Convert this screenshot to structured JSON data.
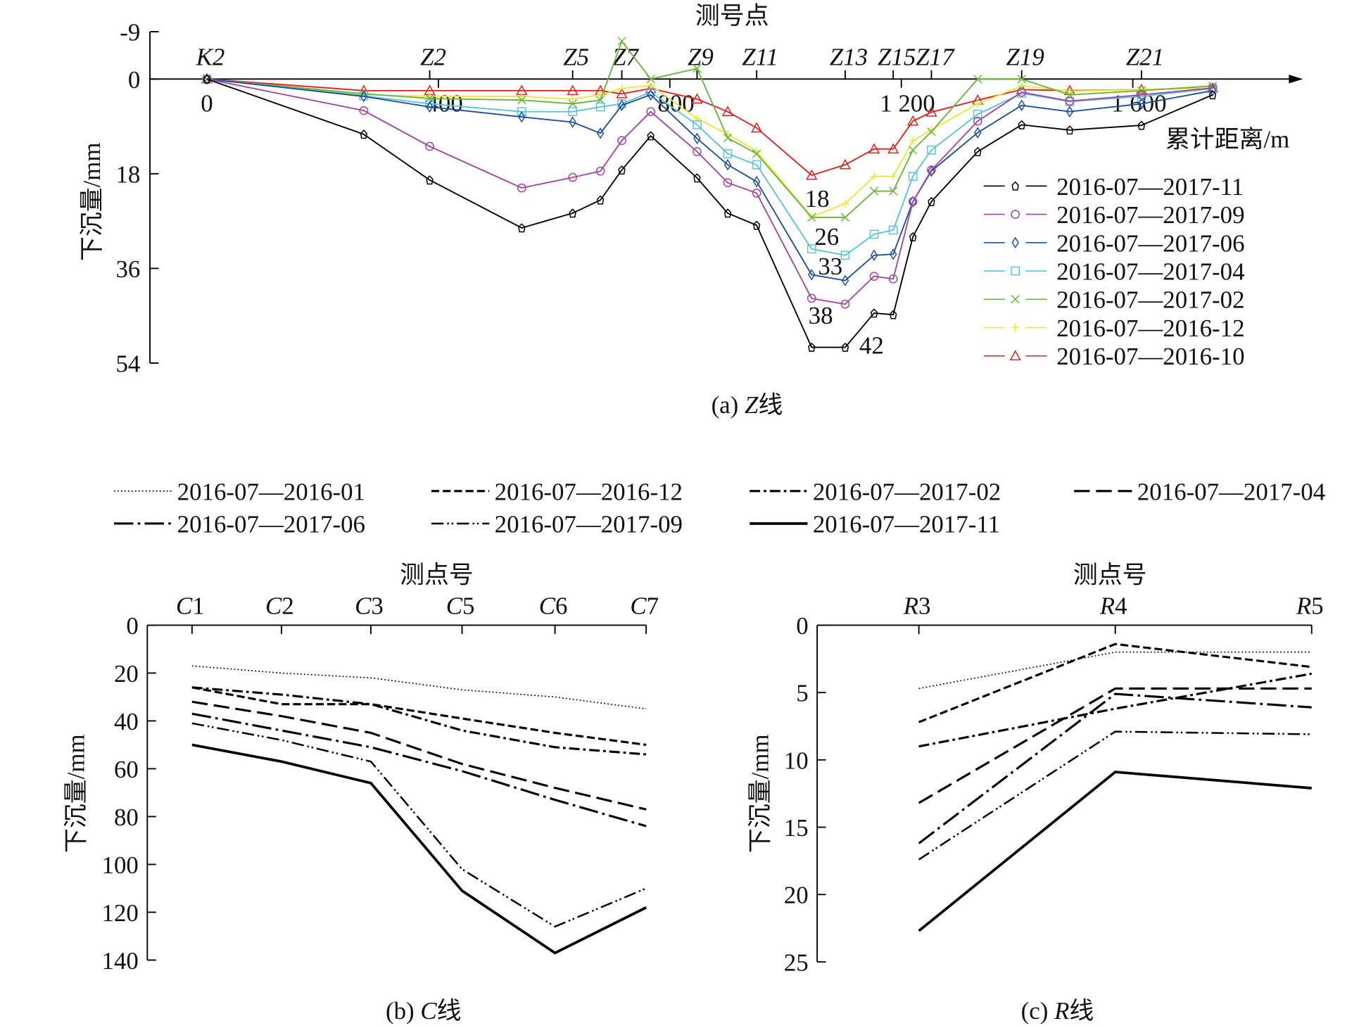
{
  "chart_data": [
    {
      "type": "line",
      "panel": "a",
      "title": "测号点",
      "caption": {
        "prefix": "(a) ",
        "letter": "Z",
        "suffix": "线"
      },
      "xlabel": "累计距离/m",
      "ylabel": "下沉量/mm",
      "xlim": [
        0,
        1850
      ],
      "ylim": [
        -9,
        54
      ],
      "y_inverted": true,
      "yticks": [
        -9,
        0,
        18,
        36,
        54
      ],
      "xticks": [
        {
          "v": 0,
          "label": "0"
        },
        {
          "v": 400,
          "label": "400"
        },
        {
          "v": 800,
          "label": "800"
        },
        {
          "v": 1200,
          "label": "1 200"
        },
        {
          "v": 1600,
          "label": "1 600"
        }
      ],
      "point_labels": [
        {
          "name": "K2",
          "x": 0
        },
        {
          "name": "Z2",
          "x": 385
        },
        {
          "name": "Z5",
          "x": 632
        },
        {
          "name": "Z7",
          "x": 717
        },
        {
          "name": "Z9",
          "x": 847
        },
        {
          "name": "Z11",
          "x": 950
        },
        {
          "name": "Z13",
          "x": 1103
        },
        {
          "name": "Z15",
          "x": 1186
        },
        {
          "name": "Z17",
          "x": 1252
        },
        {
          "name": "Z19",
          "x": 1408
        },
        {
          "name": "Z21",
          "x": 1615
        }
      ],
      "x": [
        0,
        271,
        385,
        544,
        632,
        680,
        717,
        767,
        847,
        900,
        950,
        1045,
        1103,
        1153,
        1186,
        1220,
        1252,
        1332,
        1408,
        1491,
        1615,
        1738
      ],
      "legend_placement": "right",
      "series": [
        {
          "name": "2016-07—2017-11",
          "color": "#000000",
          "marker": "pentagon",
          "values": [
            0,
            10.5,
            19.2,
            28.3,
            25.5,
            23,
            17.3,
            10.8,
            18.8,
            25.5,
            27.8,
            51,
            51,
            44.5,
            44.8,
            30,
            23.3,
            13.8,
            8.7,
            9.7,
            8.8,
            3
          ]
        },
        {
          "name": "2016-07—2017-09",
          "color": "#a0479e",
          "marker": "circle",
          "values": [
            0,
            6,
            12.8,
            20.7,
            18.7,
            17.5,
            11.7,
            6.2,
            13.8,
            19.7,
            21.7,
            41.7,
            42.8,
            37.5,
            38,
            23.3,
            17.3,
            8,
            2.5,
            4.2,
            3,
            1.7
          ]
        },
        {
          "name": "2016-07—2017-06",
          "color": "#1f4f9c",
          "marker": "diamond",
          "values": [
            0,
            3.3,
            5.3,
            7.2,
            8.2,
            10.3,
            5,
            3,
            11.3,
            16.3,
            19.5,
            37.2,
            38.3,
            33.5,
            33.3,
            23.3,
            17.5,
            10.2,
            5,
            6.2,
            4.7,
            2.2
          ]
        },
        {
          "name": "2016-07—2017-04",
          "color": "#5bc4d6",
          "marker": "square",
          "values": [
            0,
            3.2,
            4.7,
            6.2,
            6.2,
            5.3,
            4.7,
            2.5,
            8.7,
            14.2,
            16.3,
            32.3,
            33.5,
            29.5,
            28.7,
            18.5,
            13.5,
            6.7,
            2.7,
            4.3,
            3.3,
            1.8
          ]
        },
        {
          "name": "2016-07—2017-02",
          "color": "#6db33f",
          "marker": "x",
          "values": [
            0,
            2.8,
            3.7,
            4,
            4.7,
            4,
            -7.2,
            0,
            -2,
            11.2,
            14.2,
            26.3,
            26.3,
            21.3,
            21.3,
            13.5,
            10,
            0,
            0,
            3,
            2.2,
            1.3
          ]
        },
        {
          "name": "2016-07—2016-12",
          "color": "#e8e83a",
          "marker": "plus",
          "values": [
            0,
            3,
            3.3,
            3.3,
            3.8,
            3,
            1.8,
            1.2,
            7.5,
            10.5,
            13.7,
            26.2,
            23.7,
            18.5,
            18.5,
            11.7,
            9.7,
            4.7,
            1.3,
            2.3,
            2,
            1.7
          ]
        },
        {
          "name": "2016-07—2016-10",
          "color": "#e02020",
          "marker": "triangle",
          "values": [
            0,
            2.2,
            2.2,
            2.2,
            2.2,
            2.2,
            2.8,
            1.8,
            3.8,
            6.2,
            9.3,
            18.3,
            16.3,
            13.3,
            13.3,
            8,
            6.3,
            4,
            2,
            2.2,
            2,
            1.7
          ]
        }
      ],
      "annotations": {
        "color": "#1f4f9c",
        "labels": [
          "18",
          "26",
          "33",
          "38",
          "42"
        ]
      }
    },
    {
      "type": "line",
      "panel": "b",
      "title": "测点号",
      "caption": {
        "prefix": "(b) ",
        "letter": "C",
        "suffix": "线"
      },
      "ylabel": "下沉量/mm",
      "ylim": [
        0,
        140
      ],
      "y_inverted": true,
      "yticks": [
        0,
        20,
        40,
        60,
        80,
        100,
        120,
        140
      ],
      "categories": [
        {
          "letter": "C",
          "num": "1"
        },
        {
          "letter": "C",
          "num": "2"
        },
        {
          "letter": "C",
          "num": "3"
        },
        {
          "letter": "C",
          "num": "5"
        },
        {
          "letter": "C",
          "num": "6"
        },
        {
          "letter": "C",
          "num": "7"
        }
      ],
      "series": [
        {
          "name": "2016-07—2016-01",
          "style": "dotted",
          "values": [
            17,
            20,
            22,
            27,
            30,
            35
          ]
        },
        {
          "name": "2016-07—2016-12",
          "style": "dashed",
          "values": [
            26,
            33,
            33,
            39,
            45,
            50
          ]
        },
        {
          "name": "2016-07—2017-02",
          "style": "dashdot",
          "values": [
            26,
            29,
            33,
            44,
            51,
            54
          ]
        },
        {
          "name": "2016-07—2017-04",
          "style": "longdash",
          "values": [
            32,
            38,
            45,
            58,
            68,
            77
          ]
        },
        {
          "name": "2016-07—2017-06",
          "style": "longdashdot",
          "values": [
            37,
            44,
            51,
            61,
            73,
            84
          ]
        },
        {
          "name": "2016-07—2017-09",
          "style": "dashdotdot",
          "values": [
            41,
            48,
            57,
            102,
            126,
            110
          ]
        },
        {
          "name": "2016-07—2017-11",
          "style": "solid",
          "values": [
            50,
            57,
            66,
            111,
            137,
            118
          ]
        }
      ],
      "legend_placement": "top"
    },
    {
      "type": "line",
      "panel": "c",
      "title": "测点号",
      "caption": {
        "prefix": "(c) ",
        "letter": "R",
        "suffix": "线"
      },
      "ylabel": "下沉量/mm",
      "ylim": [
        0,
        25
      ],
      "y_inverted": true,
      "yticks": [
        0,
        5,
        10,
        15,
        20,
        25
      ],
      "categories": [
        {
          "letter": "R",
          "num": "3"
        },
        {
          "letter": "R",
          "num": "4"
        },
        {
          "letter": "R",
          "num": "5"
        }
      ],
      "series": [
        {
          "name": "2016-07—2016-01",
          "style": "dotted",
          "values": [
            4.7,
            2.0,
            2.0
          ]
        },
        {
          "name": "2016-07—2016-12",
          "style": "dashed",
          "values": [
            7.2,
            1.4,
            3.1
          ]
        },
        {
          "name": "2016-07—2017-02",
          "style": "dashdot",
          "values": [
            9.0,
            6.2,
            3.6
          ]
        },
        {
          "name": "2016-07—2017-04",
          "style": "longdash",
          "values": [
            13.2,
            4.7,
            4.7
          ]
        },
        {
          "name": "2016-07—2017-06",
          "style": "longdashdot",
          "values": [
            16.2,
            5.1,
            6.1
          ]
        },
        {
          "name": "2016-07—2017-09",
          "style": "dashdotdot",
          "values": [
            17.4,
            7.9,
            8.1
          ]
        },
        {
          "name": "2016-07—2017-11",
          "style": "solid",
          "values": [
            22.7,
            10.9,
            12.1
          ]
        }
      ],
      "legend_placement": "top"
    }
  ]
}
